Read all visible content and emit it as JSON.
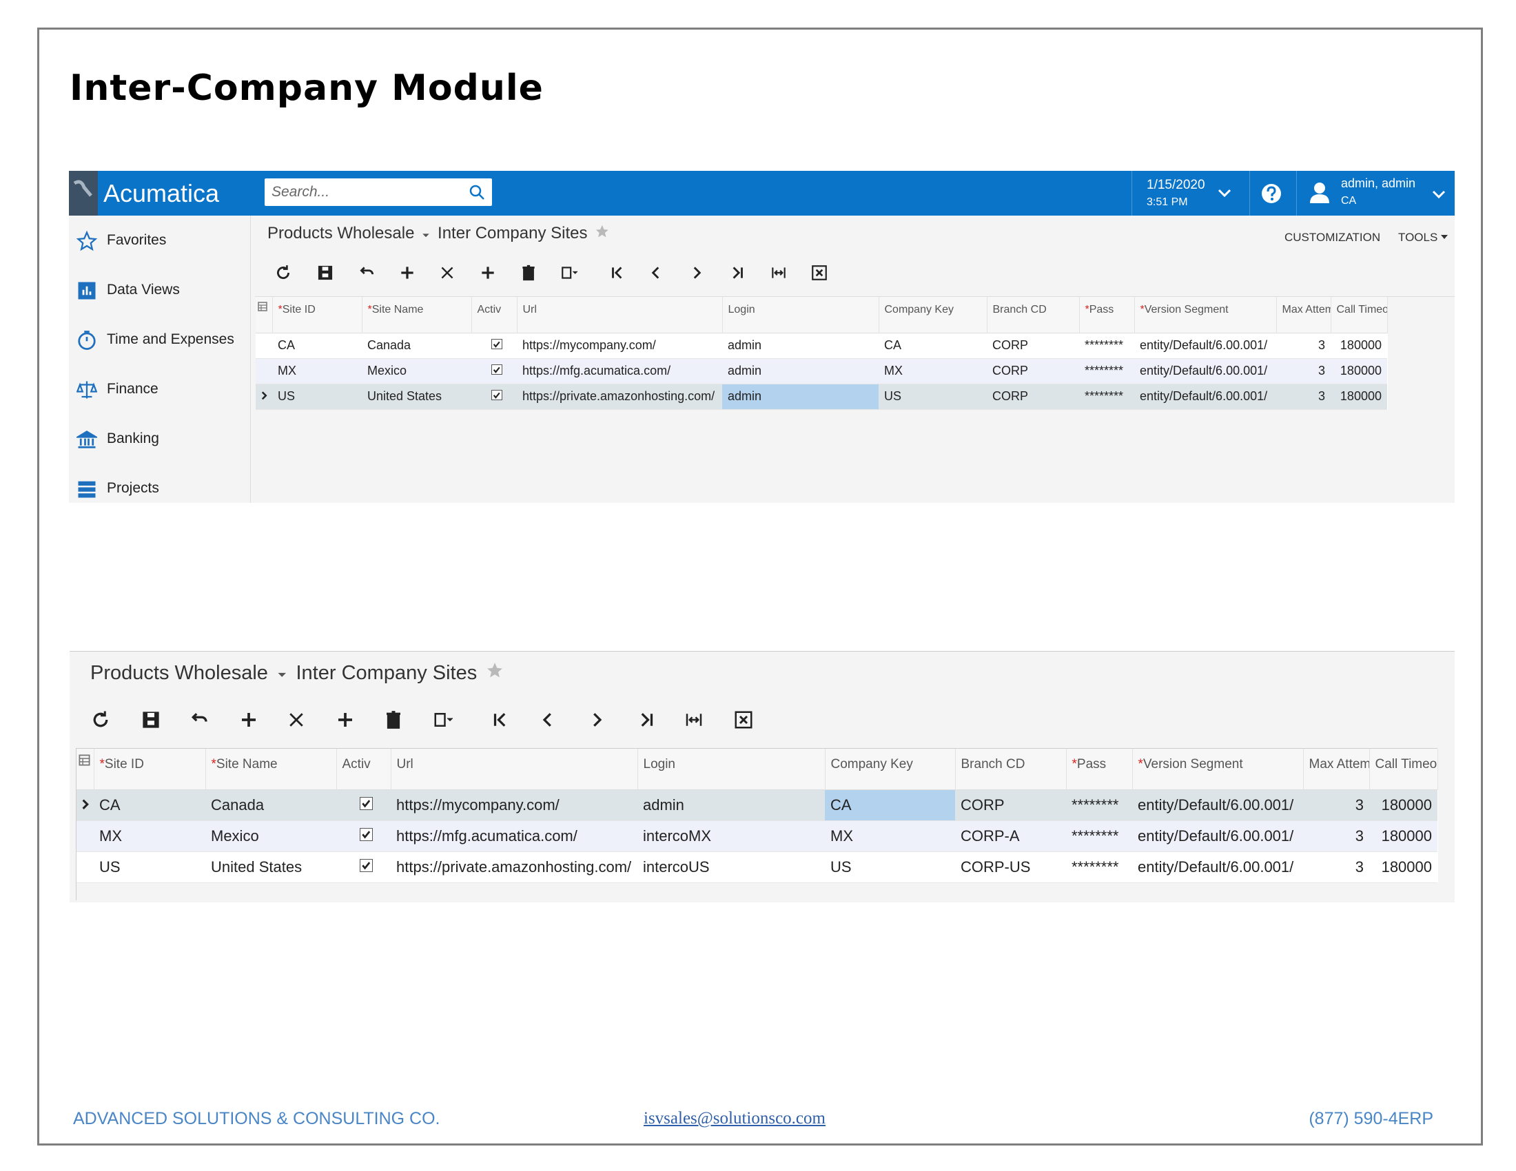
{
  "header": {
    "title": "Inter-Company Module"
  },
  "screen1": {
    "app": "Acumatica",
    "search": "Search...",
    "date": "1/15/2020",
    "time": "3:51 PM",
    "user": "admin, admin",
    "branch": "CA",
    "menu": [
      "Favorites",
      "Data Views",
      "Time and Expenses",
      "Finance",
      "Banking",
      "Projects"
    ],
    "breadcrumb": {
      "company": "Products Wholesale",
      "screen": "Inter Company Sites"
    },
    "links": [
      "CUSTOMIZATION",
      "TOOLS"
    ],
    "grid": {
      "columns": [
        {
          "label": "Site ID",
          "req": "*"
        },
        {
          "label": "Site Name",
          "req": "*"
        },
        {
          "label": "Activ"
        },
        {
          "label": "Url"
        },
        {
          "label": "Login"
        },
        {
          "label": "Company Key"
        },
        {
          "label": "Branch CD"
        },
        {
          "label": "Pass",
          "req": "*"
        },
        {
          "label": "Version Segment",
          "req": "*"
        },
        {
          "label": "Max Attem"
        },
        {
          "label": "Call Timeo"
        }
      ],
      "rows": [
        [
          "CA",
          "Canada",
          true,
          "https://mycompany.com/",
          "admin",
          "CA",
          "CORP",
          "********",
          "entity/Default/6.00.001/",
          3,
          180000
        ],
        [
          "MX",
          "Mexico",
          true,
          "https://mfg.acumatica.com/",
          "admin",
          "MX",
          "CORP",
          "********",
          "entity/Default/6.00.001/",
          3,
          180000
        ],
        [
          "US",
          "United States",
          true,
          "https://private.amazonhosting.com/",
          "admin",
          "US",
          "CORP",
          "********",
          "entity/Default/6.00.001/",
          3,
          180000
        ]
      ],
      "selected_row": 2,
      "focused_column": 4
    }
  },
  "screen2": {
    "breadcrumb": {
      "company": "Products Wholesale",
      "screen": "Inter Company Sites"
    },
    "grid": {
      "columns": [
        {
          "label": "Site ID",
          "req": "*"
        },
        {
          "label": "Site Name",
          "req": "*"
        },
        {
          "label": "Activ"
        },
        {
          "label": "Url"
        },
        {
          "label": "Login"
        },
        {
          "label": "Company Key"
        },
        {
          "label": "Branch CD"
        },
        {
          "label": "Pass",
          "req": "*"
        },
        {
          "label": "Version Segment",
          "req": "*"
        },
        {
          "label": "Max Attem"
        },
        {
          "label": "Call Timeo"
        }
      ],
      "rows": [
        [
          "CA",
          "Canada",
          true,
          "https://mycompany.com/",
          "admin",
          "CA",
          "CORP",
          "********",
          "entity/Default/6.00.001/",
          3,
          180000
        ],
        [
          "MX",
          "Mexico",
          true,
          "https://mfg.acumatica.com/",
          "intercoMX",
          "MX",
          "CORP-A",
          "********",
          "entity/Default/6.00.001/",
          3,
          180000
        ],
        [
          "US",
          "United States",
          true,
          "https://private.amazonhosting.com/",
          "intercoUS",
          "US",
          "CORP-US",
          "********",
          "entity/Default/6.00.001/",
          3,
          180000
        ]
      ],
      "selected_row": 0,
      "focused_column": 5
    }
  },
  "footer": {
    "company": "ADVANCED SOLUTIONS & CONSULTING CO.",
    "email": "isvsales@solutionsco.com",
    "phone": "(877) 590-4ERP"
  }
}
